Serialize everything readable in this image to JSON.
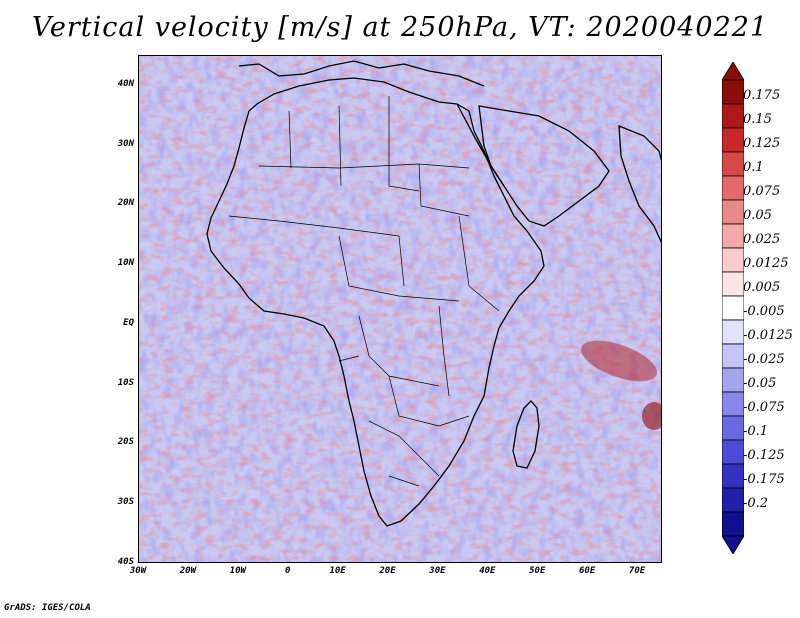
{
  "title": "Vertical velocity [m/s] at 250hPa, VT: 2020040221",
  "footer": "GrADS: IGES/COLA",
  "map": {
    "lat_labels": [
      "40N",
      "30N",
      "20N",
      "10N",
      "EQ",
      "10S",
      "20S",
      "30S",
      "40S"
    ],
    "lat_values": [
      40,
      30,
      20,
      10,
      0,
      -10,
      -20,
      -30,
      -40
    ],
    "lon_labels": [
      "30W",
      "20W",
      "10W",
      "0",
      "10E",
      "20E",
      "30E",
      "40E",
      "50E",
      "60E",
      "70E"
    ],
    "lon_values": [
      -30,
      -20,
      -10,
      0,
      10,
      20,
      30,
      40,
      50,
      60,
      70
    ],
    "lon_range": [
      -30,
      75
    ],
    "lat_range": [
      -40,
      45
    ]
  },
  "colorbar": {
    "labels": [
      "0.175",
      "0.15",
      "0.125",
      "0.1",
      "0.075",
      "0.05",
      "0.025",
      "0.0125",
      "0.005",
      "-0.005",
      "-0.0125",
      "-0.025",
      "-0.05",
      "-0.075",
      "-0.1",
      "-0.125",
      "-0.175",
      "-0.2"
    ],
    "colors": [
      "#8c0c0c",
      "#b01818",
      "#c82828",
      "#d94848",
      "#e36a6a",
      "#ea8a88",
      "#f2aaa8",
      "#f7cccb",
      "#fbe6e6",
      "#ffffff",
      "#e2e2fb",
      "#c4c4f6",
      "#a5a5ef",
      "#8888ea",
      "#6a6ae0",
      "#4c4cd6",
      "#3232c2",
      "#2020a8",
      "#101090"
    ]
  }
}
